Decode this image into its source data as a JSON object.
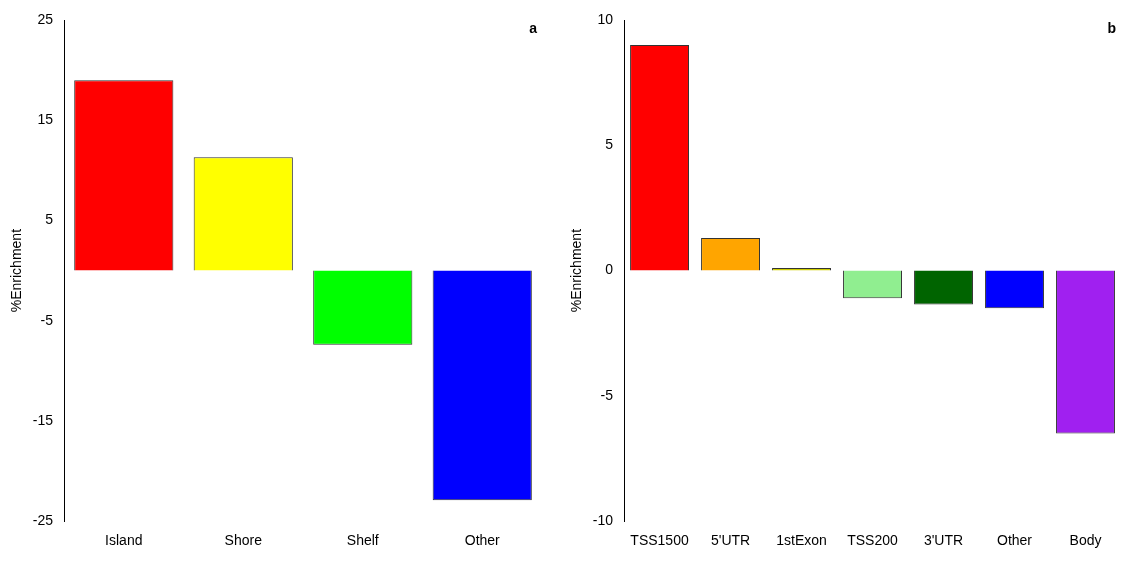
{
  "chart_data": [
    {
      "type": "bar",
      "categories": [
        "Island",
        "Shore",
        "Shelf",
        "Other"
      ],
      "values": [
        19,
        11.3,
        -7.4,
        -22.9
      ],
      "colors": [
        "#ff0000",
        "#ffff00",
        "#00ff00",
        "#0000ff"
      ],
      "ylabel": "%Enrichment",
      "ylim": [
        -25,
        25
      ],
      "yticks": [
        -25,
        -15,
        -5,
        5,
        15,
        25
      ],
      "grid": false,
      "legend": false,
      "annotations": [
        "a"
      ]
    },
    {
      "type": "bar",
      "categories": [
        "TSS1500",
        "5'UTR",
        "1stExon",
        "TSS200",
        "3'UTR",
        "Other",
        "Body"
      ],
      "values": [
        9,
        1.3,
        0.1,
        -1.1,
        -1.35,
        -1.5,
        -6.5
      ],
      "colors": [
        "#ff0000",
        "#ffa500",
        "#cdcd00",
        "#90ee90",
        "#006400",
        "#0000ff",
        "#a020f0"
      ],
      "ylabel": "%Enrichment",
      "ylim": [
        -10,
        10
      ],
      "yticks": [
        -10,
        -5,
        0,
        5,
        10
      ],
      "grid": false,
      "legend": false,
      "annotations": [
        "b"
      ]
    }
  ]
}
